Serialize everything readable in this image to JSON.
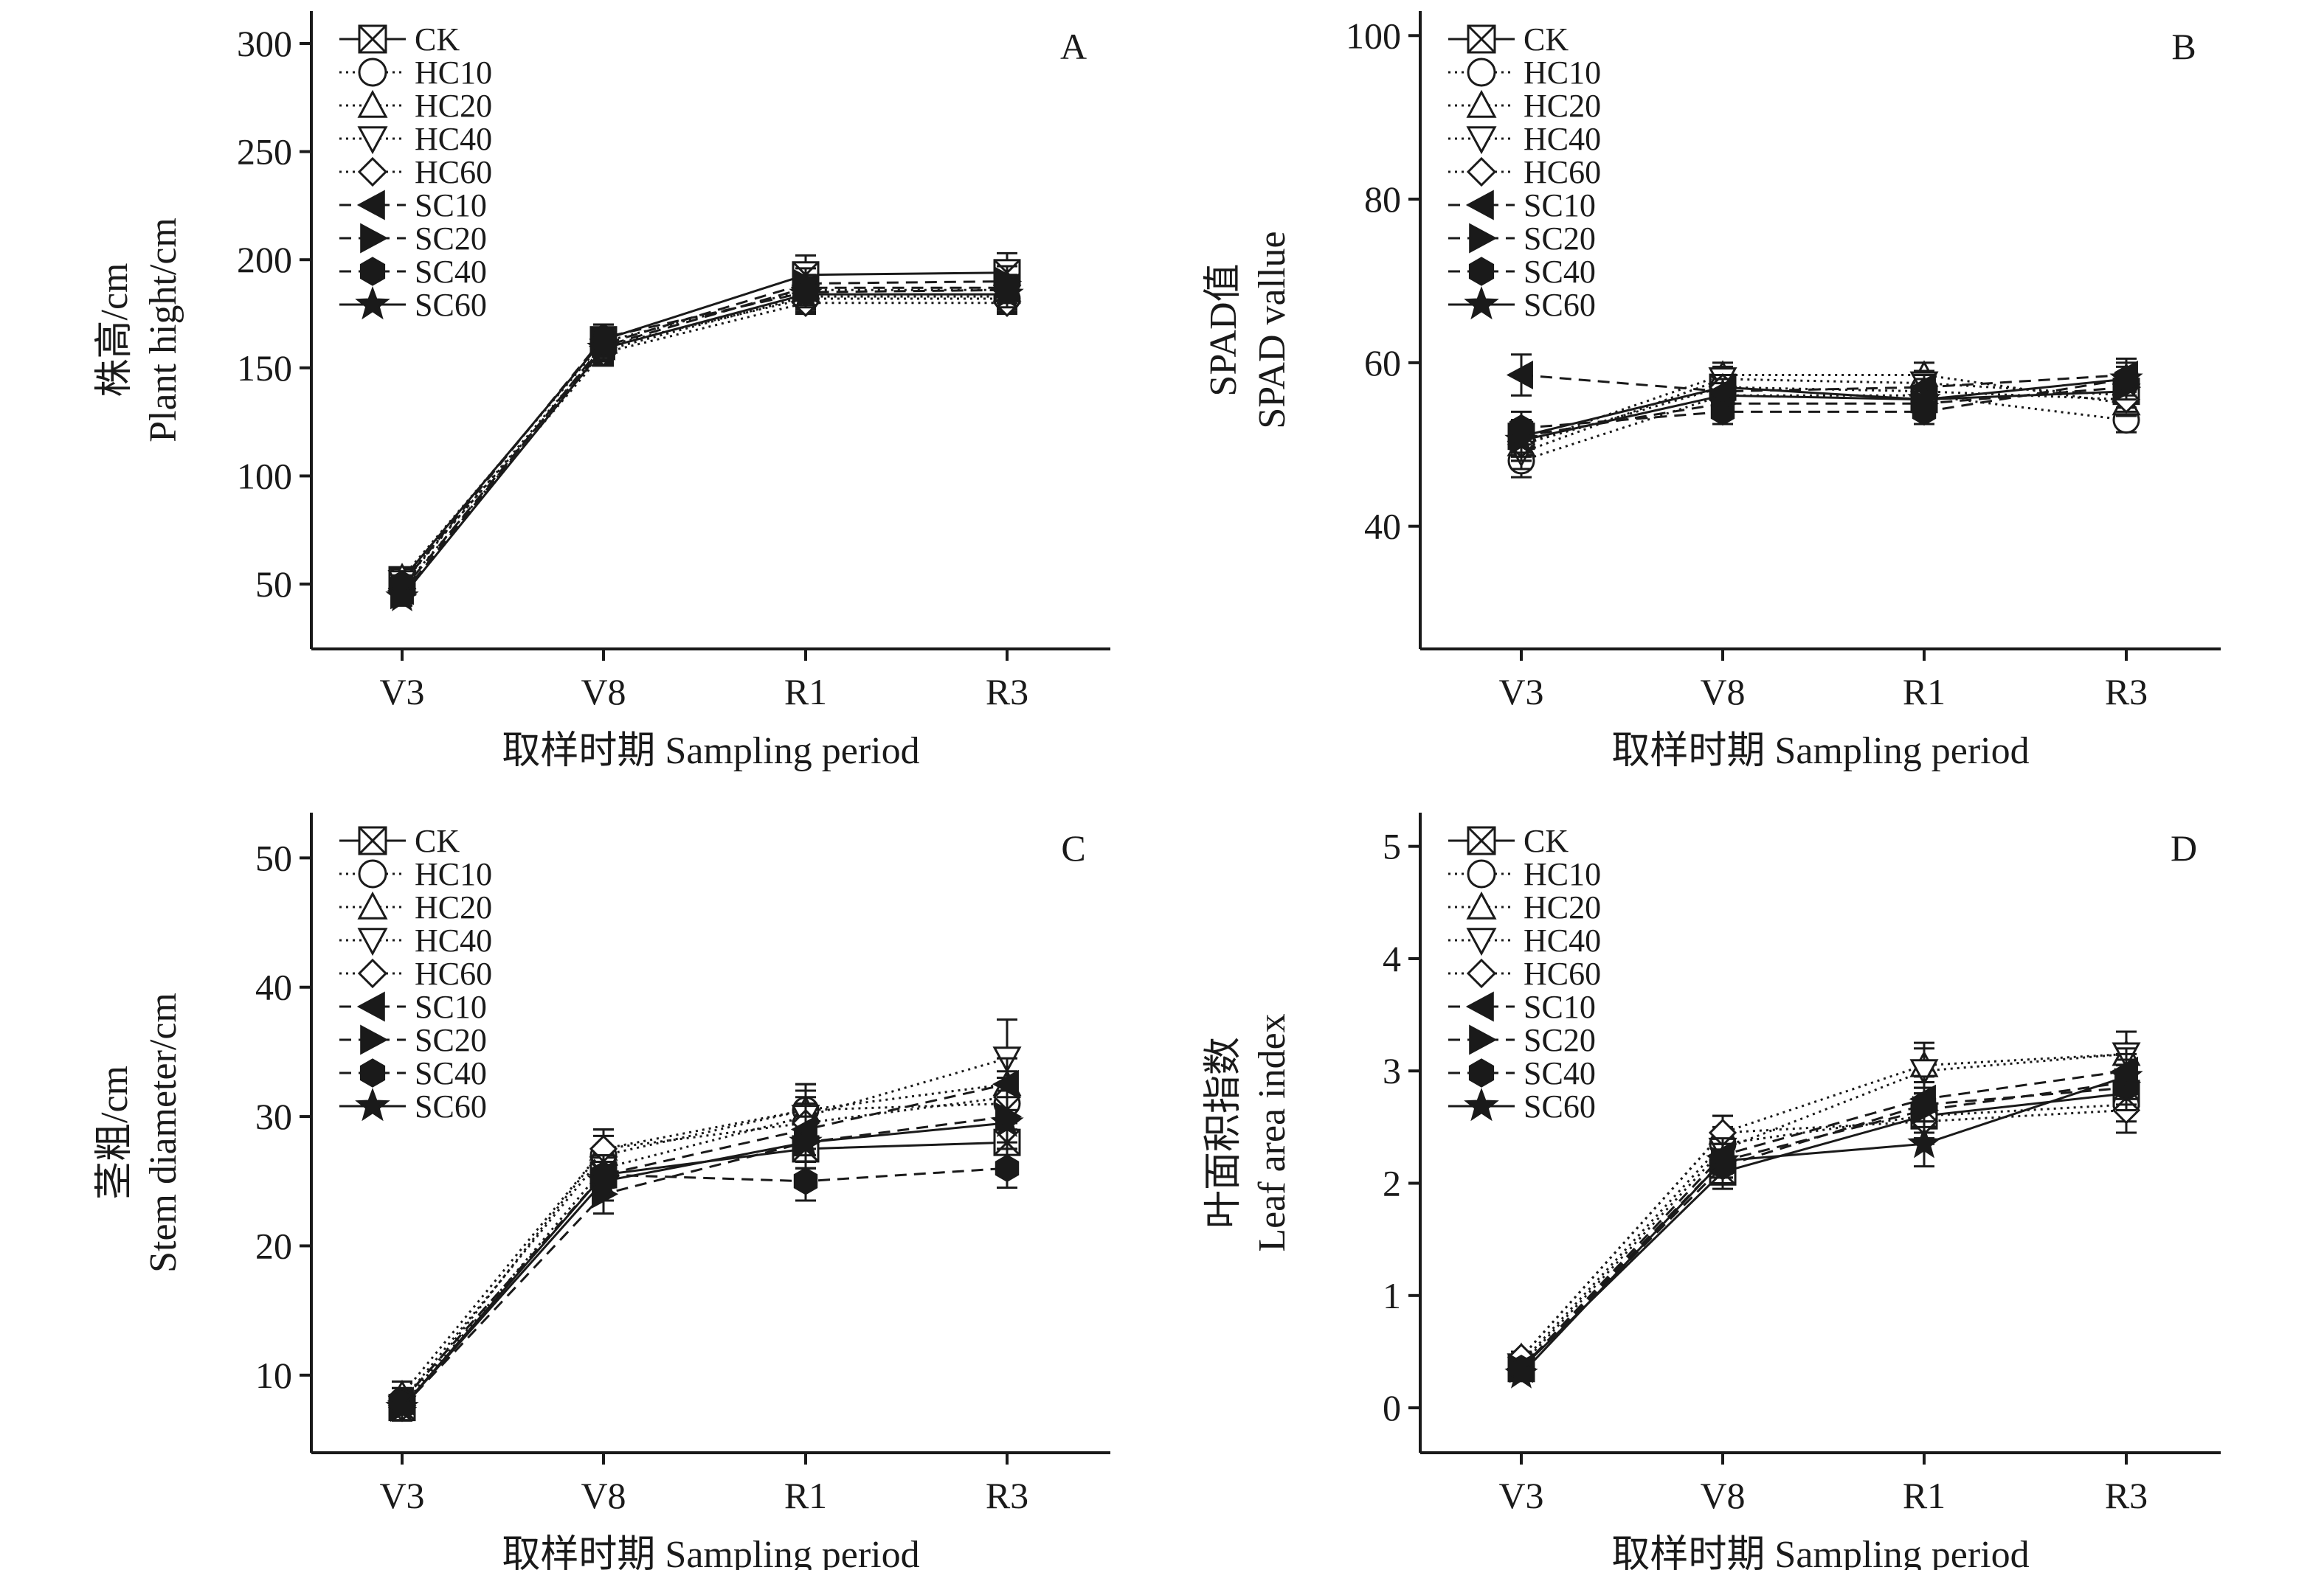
{
  "figure": {
    "series_styles": [
      {
        "name": "CK",
        "marker": "square-x",
        "filled": false,
        "dash": "solid"
      },
      {
        "name": "HC10",
        "marker": "circle",
        "filled": false,
        "dash": "dotted"
      },
      {
        "name": "HC20",
        "marker": "triangle-up",
        "filled": false,
        "dash": "dotted"
      },
      {
        "name": "HC40",
        "marker": "triangle-down",
        "filled": false,
        "dash": "dotted"
      },
      {
        "name": "HC60",
        "marker": "diamond",
        "filled": false,
        "dash": "dotted"
      },
      {
        "name": "SC10",
        "marker": "triangle-left",
        "filled": true,
        "dash": "dashed"
      },
      {
        "name": "SC20",
        "marker": "triangle-right",
        "filled": true,
        "dash": "dashed"
      },
      {
        "name": "SC40",
        "marker": "hexagon",
        "filled": true,
        "dash": "dashed"
      },
      {
        "name": "SC60",
        "marker": "star",
        "filled": true,
        "dash": "solid"
      }
    ],
    "colors": {
      "ink": "#1a1a1a",
      "background": "#ffffff"
    }
  },
  "chart_data": [
    {
      "panel": "A",
      "type": "line",
      "categories": [
        "V3",
        "V8",
        "R1",
        "R3"
      ],
      "xlabel": "取样时期 Sampling period",
      "ylabel_lines": [
        "株高/cm",
        "Plant hight/cm"
      ],
      "ylim": [
        20,
        315
      ],
      "yticks": [
        50,
        100,
        150,
        200,
        250,
        300
      ],
      "grid": false,
      "legend_position": "top-left",
      "series": [
        {
          "name": "CK",
          "values": [
            52,
            163,
            193,
            194
          ],
          "err": [
            4,
            7,
            9,
            9
          ]
        },
        {
          "name": "HC10",
          "values": [
            50,
            160,
            182,
            182
          ],
          "err": [
            4,
            6,
            6,
            6
          ]
        },
        {
          "name": "HC20",
          "values": [
            53,
            162,
            186,
            186
          ],
          "err": [
            4,
            6,
            6,
            6
          ]
        },
        {
          "name": "HC40",
          "values": [
            51,
            158,
            183,
            183
          ],
          "err": [
            4,
            6,
            6,
            6
          ]
        },
        {
          "name": "HC60",
          "values": [
            48,
            157,
            180,
            180
          ],
          "err": [
            4,
            6,
            5,
            5
          ]
        },
        {
          "name": "SC10",
          "values": [
            47,
            160,
            187,
            187
          ],
          "err": [
            4,
            6,
            6,
            6
          ]
        },
        {
          "name": "SC20",
          "values": [
            45,
            161,
            189,
            190
          ],
          "err": [
            4,
            6,
            7,
            7
          ]
        },
        {
          "name": "SC40",
          "values": [
            50,
            164,
            185,
            186
          ],
          "err": [
            4,
            6,
            6,
            6
          ]
        },
        {
          "name": "SC60",
          "values": [
            44,
            159,
            184,
            184
          ],
          "err": [
            4,
            6,
            6,
            6
          ]
        }
      ]
    },
    {
      "panel": "B",
      "type": "line",
      "categories": [
        "V3",
        "V8",
        "R1",
        "R3"
      ],
      "xlabel": "取样时期 Sampling period",
      "ylabel_lines": [
        "SPAD值",
        "SPAD vallue"
      ],
      "ylim": [
        25,
        103
      ],
      "yticks": [
        40,
        60,
        80,
        100
      ],
      "grid": false,
      "legend_position": "top-left",
      "series": [
        {
          "name": "CK",
          "values": [
            51,
            57,
            55.5,
            56.5
          ],
          "err": [
            2,
            1.5,
            1.5,
            1.5
          ]
        },
        {
          "name": "HC10",
          "values": [
            48,
            56,
            56,
            53
          ],
          "err": [
            2,
            1.5,
            1.5,
            1.5
          ]
        },
        {
          "name": "HC20",
          "values": [
            50,
            58.5,
            58.5,
            55
          ],
          "err": [
            2,
            1.5,
            1.5,
            1.5
          ]
        },
        {
          "name": "HC40",
          "values": [
            49,
            58,
            57.5,
            56
          ],
          "err": [
            2,
            1.5,
            1.5,
            1.5
          ]
        },
        {
          "name": "HC60",
          "values": [
            50,
            57,
            56.5,
            55.5
          ],
          "err": [
            2,
            1.5,
            1.5,
            1.5
          ]
        },
        {
          "name": "SC10",
          "values": [
            58.5,
            56.5,
            57,
            58.5
          ],
          "err": [
            2.5,
            1.5,
            1.5,
            2
          ]
        },
        {
          "name": "SC20",
          "values": [
            51,
            55,
            55,
            57
          ],
          "err": [
            2,
            1.5,
            1.5,
            1.5
          ]
        },
        {
          "name": "SC40",
          "values": [
            52,
            54,
            54,
            58
          ],
          "err": [
            2,
            1.5,
            1.5,
            2
          ]
        },
        {
          "name": "SC60",
          "values": [
            50.5,
            56,
            55.5,
            58
          ],
          "err": [
            2,
            1.5,
            1.5,
            1.5
          ]
        }
      ]
    },
    {
      "panel": "C",
      "type": "line",
      "categories": [
        "V3",
        "V8",
        "R1",
        "R3"
      ],
      "xlabel": "取样时期 Sampling period",
      "ylabel_lines": [
        "茎粗/cm",
        "Stem diameter/cm"
      ],
      "ylim": [
        4,
        53.5
      ],
      "yticks": [
        10,
        20,
        30,
        40,
        50
      ],
      "grid": false,
      "legend_position": "top-left",
      "series": [
        {
          "name": "CK",
          "values": [
            7.5,
            25.5,
            27.5,
            28
          ],
          "err": [
            1,
            1.5,
            1.5,
            1.5
          ]
        },
        {
          "name": "HC10",
          "values": [
            8,
            27,
            30.5,
            31
          ],
          "err": [
            1,
            1.5,
            2,
            2
          ]
        },
        {
          "name": "HC20",
          "values": [
            8.5,
            27.5,
            30.5,
            32.5
          ],
          "err": [
            1,
            1.5,
            2,
            2
          ]
        },
        {
          "name": "HC40",
          "values": [
            7.5,
            26,
            30,
            34.5
          ],
          "err": [
            1,
            1.5,
            2,
            3
          ]
        },
        {
          "name": "HC60",
          "values": [
            7.5,
            27.5,
            29.5,
            31.5
          ],
          "err": [
            1,
            1.5,
            2,
            2
          ]
        },
        {
          "name": "SC10",
          "values": [
            8,
            25.5,
            29,
            32.5
          ],
          "err": [
            1,
            1.5,
            2,
            2
          ]
        },
        {
          "name": "SC20",
          "values": [
            7.5,
            24,
            28,
            30
          ],
          "err": [
            1,
            1.5,
            2,
            2
          ]
        },
        {
          "name": "SC40",
          "values": [
            8,
            25.5,
            25,
            26
          ],
          "err": [
            1,
            1.5,
            1.5,
            1.5
          ]
        },
        {
          "name": "SC60",
          "values": [
            7.5,
            25,
            28,
            29.5
          ],
          "err": [
            1,
            1.5,
            2,
            2
          ]
        }
      ]
    },
    {
      "panel": "D",
      "type": "line",
      "categories": [
        "V3",
        "V8",
        "R1",
        "R3"
      ],
      "xlabel": "取样时期 Sampling period",
      "ylabel_lines": [
        "叶面积指数",
        "Leaf area index"
      ],
      "ylim": [
        -0.4,
        5.3
      ],
      "yticks": [
        0,
        1,
        2,
        3,
        4,
        5
      ],
      "grid": false,
      "legend_position": "top-left",
      "series": [
        {
          "name": "CK",
          "values": [
            0.35,
            2.1,
            2.6,
            2.8
          ],
          "err": [
            0.05,
            0.15,
            0.2,
            0.15
          ]
        },
        {
          "name": "HC10",
          "values": [
            0.4,
            2.35,
            2.6,
            2.7
          ],
          "err": [
            0.05,
            0.15,
            0.2,
            0.15
          ]
        },
        {
          "name": "HC20",
          "values": [
            0.45,
            2.45,
            3.05,
            3.15
          ],
          "err": [
            0.05,
            0.15,
            0.2,
            0.2
          ]
        },
        {
          "name": "HC40",
          "values": [
            0.38,
            2.3,
            3.0,
            3.15
          ],
          "err": [
            0.05,
            0.15,
            0.2,
            0.2
          ]
        },
        {
          "name": "HC60",
          "values": [
            0.45,
            2.45,
            2.55,
            2.65
          ],
          "err": [
            0.05,
            0.15,
            0.2,
            0.2
          ]
        },
        {
          "name": "SC10",
          "values": [
            0.35,
            2.25,
            2.75,
            3.0
          ],
          "err": [
            0.05,
            0.15,
            0.2,
            0.2
          ]
        },
        {
          "name": "SC20",
          "values": [
            0.35,
            2.2,
            2.65,
            2.9
          ],
          "err": [
            0.05,
            0.15,
            0.2,
            0.2
          ]
        },
        {
          "name": "SC40",
          "values": [
            0.35,
            2.15,
            2.7,
            2.85
          ],
          "err": [
            0.05,
            0.15,
            0.2,
            0.2
          ]
        },
        {
          "name": "SC60",
          "values": [
            0.3,
            2.2,
            2.35,
            2.95
          ],
          "err": [
            0.05,
            0.15,
            0.2,
            0.2
          ]
        }
      ]
    }
  ]
}
